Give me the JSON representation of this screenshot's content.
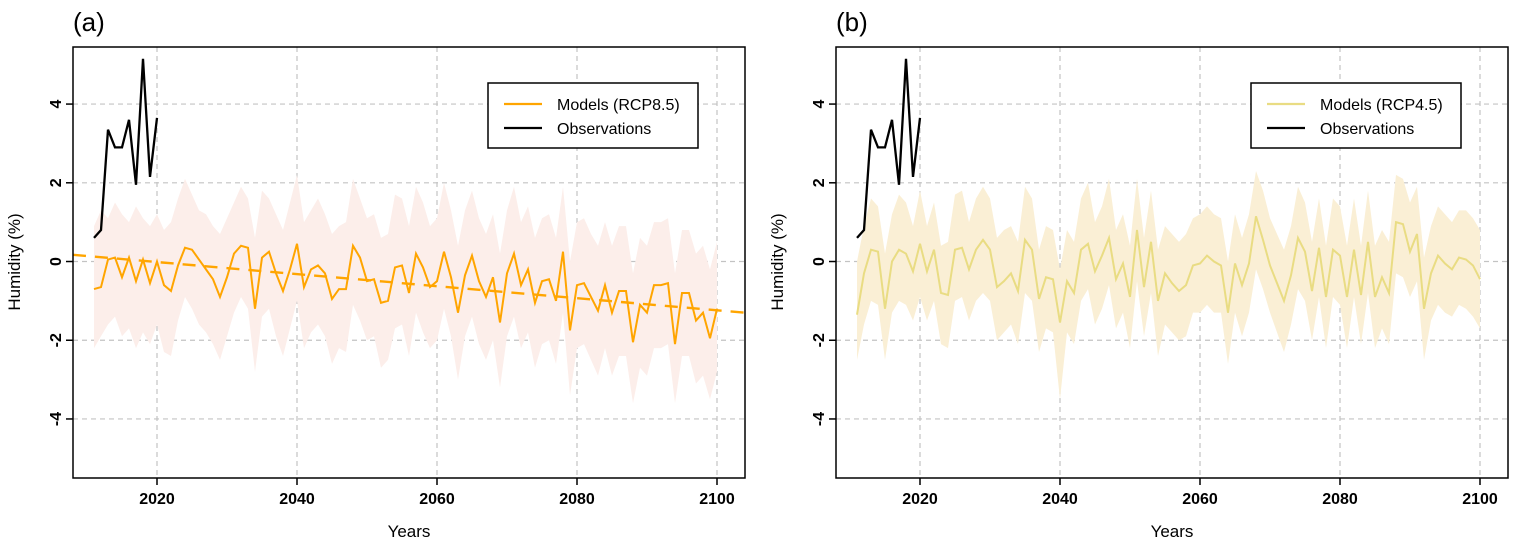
{
  "figure": {
    "background": "#ffffff",
    "grid_color": "#c3c3c3",
    "axis_color": "#000000"
  },
  "chart_data": [
    {
      "type": "line",
      "title": "(a)",
      "xlabel": "Years",
      "ylabel": "Humidity (%)",
      "xlim": [
        2008,
        2104
      ],
      "ylim": [
        -5.5,
        5.45
      ],
      "x_ticks": [
        2020,
        2040,
        2060,
        2080,
        2100
      ],
      "y_ticks": [
        -4,
        -2,
        0,
        2,
        4
      ],
      "grid": true,
      "legend_position": "top-right",
      "band": {
        "name": "model-spread-rcp85",
        "color": "#FCEEEA",
        "x_start": 2011,
        "upper": [
          0.9,
          1.3,
          1.1,
          1.5,
          1.2,
          1.0,
          1.4,
          1.1,
          0.9,
          1.2,
          0.8,
          1.0,
          1.6,
          2.1,
          1.7,
          1.3,
          1.2,
          0.9,
          0.7,
          1.1,
          1.5,
          1.9,
          1.6,
          0.6,
          1.8,
          1.6,
          1.2,
          0.8,
          1.5,
          2.2,
          1.0,
          1.3,
          1.6,
          1.2,
          0.7,
          0.9,
          1.0,
          2.1,
          1.6,
          1.1,
          1.2,
          0.6,
          0.7,
          1.7,
          1.6,
          0.9,
          1.9,
          1.5,
          0.9,
          1.1,
          2.0,
          1.3,
          0.4,
          1.3,
          1.8,
          1.1,
          0.7,
          1.2,
          0.2,
          1.3,
          1.9,
          1.0,
          1.4,
          0.6,
          1.1,
          1.2,
          0.6,
          1.9,
          0.0,
          1.0,
          1.1,
          0.7,
          0.4,
          1.0,
          0.4,
          0.9,
          0.9,
          -0.3,
          0.6,
          0.4,
          1.0,
          1.0,
          1.1,
          -0.3,
          0.8,
          0.8,
          0.2,
          0.4,
          -0.2,
          0.5
        ],
        "lower": [
          -2.2,
          -1.9,
          -1.6,
          -1.4,
          -1.9,
          -1.7,
          -2.2,
          -1.8,
          -2.1,
          -1.6,
          -2.3,
          -2.4,
          -1.5,
          -0.9,
          -1.2,
          -1.6,
          -1.8,
          -2.1,
          -2.5,
          -1.9,
          -1.3,
          -0.9,
          -1.2,
          -2.8,
          -1.4,
          -1.2,
          -1.9,
          -2.4,
          -1.7,
          -1.0,
          -2.2,
          -1.8,
          -1.6,
          -1.9,
          -2.6,
          -2.2,
          -2.3,
          -1.1,
          -1.5,
          -2.0,
          -1.9,
          -2.7,
          -2.5,
          -1.7,
          -1.6,
          -2.4,
          -1.3,
          -1.8,
          -2.2,
          -2.0,
          -1.2,
          -1.9,
          -3.0,
          -1.9,
          -1.4,
          -2.1,
          -2.5,
          -2.0,
          -3.2,
          -1.9,
          -1.4,
          -2.2,
          -1.8,
          -2.7,
          -2.1,
          -2.0,
          -2.6,
          -1.3,
          -3.4,
          -2.2,
          -2.1,
          -2.5,
          -2.9,
          -2.2,
          -2.9,
          -2.4,
          -2.4,
          -3.6,
          -2.7,
          -2.9,
          -2.2,
          -2.2,
          -2.1,
          -3.6,
          -2.4,
          -2.4,
          -3.1,
          -2.9,
          -3.5,
          -2.8
        ]
      },
      "series": [
        {
          "name": "Models (RCP8.5)",
          "color": "#FFA500",
          "style": "solid",
          "width": 2,
          "x_start": 2011,
          "values": [
            -0.7,
            -0.65,
            0.05,
            0.1,
            -0.4,
            0.1,
            -0.5,
            0.05,
            -0.55,
            0.0,
            -0.6,
            -0.75,
            -0.1,
            0.35,
            0.3,
            0.05,
            -0.2,
            -0.45,
            -0.9,
            -0.4,
            0.2,
            0.4,
            0.35,
            -1.2,
            0.1,
            0.25,
            -0.3,
            -0.75,
            -0.2,
            0.45,
            -0.65,
            -0.2,
            -0.1,
            -0.3,
            -0.95,
            -0.7,
            -0.7,
            0.4,
            0.1,
            -0.5,
            -0.45,
            -1.05,
            -1.0,
            -0.15,
            -0.1,
            -0.8,
            0.2,
            -0.15,
            -0.65,
            -0.5,
            0.25,
            -0.4,
            -1.3,
            -0.35,
            0.15,
            -0.5,
            -0.9,
            -0.4,
            -1.55,
            -0.3,
            0.2,
            -0.6,
            -0.2,
            -1.05,
            -0.5,
            -0.45,
            -1.0,
            0.25,
            -1.75,
            -0.6,
            -0.55,
            -0.9,
            -1.25,
            -0.6,
            -1.3,
            -0.75,
            -0.75,
            -2.05,
            -1.1,
            -1.3,
            -0.6,
            -0.6,
            -0.55,
            -2.1,
            -0.8,
            -0.8,
            -1.5,
            -1.3,
            -1.95,
            -1.2
          ]
        },
        {
          "name": "Observations",
          "color": "#000000",
          "style": "solid",
          "width": 2.3,
          "x_start": 2011,
          "values": [
            0.6,
            0.8,
            3.35,
            2.9,
            2.9,
            3.6,
            1.95,
            5.15,
            2.15,
            3.65
          ]
        },
        {
          "name": "linear-trend-rcp85",
          "color": "#FFA500",
          "style": "dashed",
          "width": 2.4,
          "x": [
            2008,
            2104
          ],
          "values": [
            0.17,
            -1.3
          ]
        }
      ]
    },
    {
      "type": "line",
      "title": "(b)",
      "xlabel": "Years",
      "ylabel": "Humidity (%)",
      "xlim": [
        2008,
        2104
      ],
      "ylim": [
        -5.5,
        5.45
      ],
      "x_ticks": [
        2020,
        2040,
        2060,
        2080,
        2100
      ],
      "y_ticks": [
        -4,
        -2,
        0,
        2,
        4
      ],
      "grid": true,
      "legend_position": "top-right",
      "band": {
        "name": "model-spread-rcp45",
        "color": "#FAEFD5",
        "x_start": 2011,
        "upper": [
          0.0,
          0.9,
          1.6,
          1.4,
          0.2,
          1.2,
          1.7,
          1.5,
          0.9,
          1.8,
          0.9,
          1.5,
          0.4,
          0.5,
          1.7,
          1.8,
          1.0,
          1.6,
          1.9,
          1.6,
          0.6,
          0.8,
          0.9,
          0.5,
          1.9,
          1.6,
          0.3,
          0.9,
          0.8,
          -0.2,
          0.8,
          0.5,
          1.6,
          2.0,
          1.0,
          1.4,
          2.1,
          0.8,
          1.2,
          0.4,
          2.1,
          0.6,
          1.8,
          0.3,
          0.9,
          0.7,
          0.5,
          0.7,
          1.1,
          1.2,
          1.4,
          1.2,
          1.1,
          0.0,
          1.2,
          0.6,
          1.2,
          2.3,
          1.8,
          1.1,
          0.7,
          0.3,
          0.9,
          1.9,
          1.5,
          0.5,
          1.6,
          0.4,
          1.6,
          1.4,
          0.4,
          1.6,
          0.4,
          1.8,
          0.4,
          0.8,
          0.5,
          2.2,
          2.1,
          1.5,
          1.9,
          0.1,
          0.9,
          1.4,
          1.2,
          1.0,
          1.3,
          1.3,
          1.1,
          0.8
        ],
        "lower": [
          -2.5,
          -1.6,
          -1.0,
          -1.1,
          -2.5,
          -1.3,
          -1.0,
          -1.1,
          -1.5,
          -0.9,
          -1.5,
          -1.0,
          -2.1,
          -2.2,
          -1.0,
          -0.9,
          -1.5,
          -1.0,
          -0.8,
          -1.0,
          -2.0,
          -1.8,
          -1.6,
          -2.1,
          -0.8,
          -1.0,
          -2.3,
          -1.7,
          -1.8,
          -3.5,
          -1.8,
          -2.1,
          -1.0,
          -0.7,
          -1.6,
          -1.2,
          -0.6,
          -1.7,
          -1.3,
          -2.2,
          -0.5,
          -1.9,
          -0.8,
          -2.4,
          -1.6,
          -1.8,
          -2.0,
          -1.9,
          -1.3,
          -1.3,
          -1.1,
          -1.3,
          -1.3,
          -2.6,
          -1.3,
          -1.9,
          -1.3,
          -0.2,
          -0.7,
          -1.3,
          -1.8,
          -2.3,
          -1.6,
          -0.7,
          -1.0,
          -2.0,
          -0.9,
          -2.2,
          -0.9,
          -1.1,
          -2.2,
          -0.9,
          -2.1,
          -0.8,
          -2.2,
          -1.7,
          -2.1,
          -0.3,
          -0.4,
          -0.9,
          -0.5,
          -2.5,
          -1.5,
          -1.1,
          -1.3,
          -1.4,
          -1.1,
          -1.2,
          -1.4,
          -1.7
        ]
      },
      "series": [
        {
          "name": "Models (RCP4.5)",
          "color": "#E9DC83",
          "style": "solid",
          "width": 2,
          "x_start": 2011,
          "values": [
            -1.35,
            -0.3,
            0.3,
            0.25,
            -1.2,
            0.0,
            0.3,
            0.2,
            -0.25,
            0.45,
            -0.25,
            0.3,
            -0.8,
            -0.85,
            0.3,
            0.35,
            -0.2,
            0.3,
            0.55,
            0.3,
            -0.65,
            -0.5,
            -0.3,
            -0.75,
            0.55,
            0.3,
            -0.95,
            -0.4,
            -0.45,
            -1.55,
            -0.5,
            -0.8,
            0.3,
            0.45,
            -0.25,
            0.15,
            0.6,
            -0.45,
            -0.05,
            -0.9,
            0.8,
            -0.65,
            0.5,
            -1.0,
            -0.3,
            -0.55,
            -0.75,
            -0.6,
            -0.1,
            -0.05,
            0.15,
            0.0,
            -0.1,
            -1.3,
            -0.05,
            -0.6,
            -0.05,
            1.15,
            0.55,
            -0.1,
            -0.55,
            -1.0,
            -0.35,
            0.6,
            0.25,
            -0.75,
            0.35,
            -0.9,
            0.3,
            0.15,
            -0.9,
            0.3,
            -0.85,
            0.5,
            -0.9,
            -0.4,
            -0.8,
            1.0,
            0.95,
            0.25,
            0.7,
            -1.2,
            -0.3,
            0.15,
            -0.05,
            -0.2,
            0.1,
            0.05,
            -0.1,
            -0.45
          ]
        },
        {
          "name": "Observations",
          "color": "#000000",
          "style": "solid",
          "width": 2.3,
          "x_start": 2011,
          "values": [
            0.6,
            0.8,
            3.35,
            2.9,
            2.9,
            3.6,
            1.95,
            5.15,
            2.15,
            3.65
          ]
        }
      ]
    }
  ]
}
